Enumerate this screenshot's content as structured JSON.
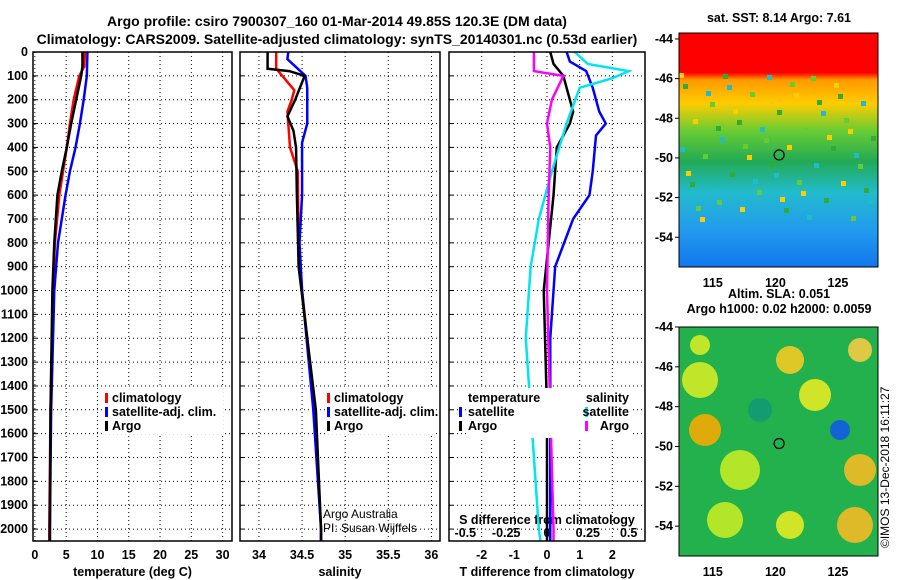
{
  "title": {
    "line1": "Argo profile: csiro 7900307_160 01-Mar-2014 49.85S 120.3E (DM data)",
    "line2": "Climatology: CARS2009. Satellite-adjusted climatology: synTS_20140301.nc (0.53d earlier)"
  },
  "credit": {
    "institution": "Argo Australia",
    "pi": "PI: Susan Wijffels"
  },
  "timestamp": "©IMOS 13-Dec-2018 16:11:27",
  "colors": {
    "climatology": "#ff0000",
    "satellite": "#0000ff",
    "argo": "#000000",
    "sal_satellite": "#00e5ee",
    "sal_argo": "#ff00ff"
  },
  "chart_data": [
    {
      "type": "line",
      "name": "temperature",
      "xlabel": "temperature (deg C)",
      "xlim": [
        -0.3,
        31.5
      ],
      "xticks": [
        0,
        5,
        10,
        15,
        20,
        25,
        30
      ],
      "ylim": [
        0,
        2050
      ],
      "yticks": [
        0,
        100,
        200,
        300,
        400,
        500,
        600,
        700,
        800,
        900,
        1000,
        1100,
        1200,
        1300,
        1400,
        1500,
        1600,
        1700,
        1800,
        1900,
        2000
      ],
      "grid": true,
      "legend": [
        "climatology",
        "satellite-adj. clim.",
        "Argo"
      ],
      "series": [
        {
          "name": "climatology",
          "color": "#ff0000",
          "depth": [
            0,
            60,
            100,
            200,
            300,
            400,
            500,
            600,
            800,
            1000,
            1500,
            2000,
            2050
          ],
          "values": [
            8,
            7.9,
            7.1,
            6.2,
            5.6,
            5.1,
            4.5,
            3.9,
            3.2,
            2.9,
            2.5,
            2.3,
            2.3
          ]
        },
        {
          "name": "satellite-adj. clim.",
          "color": "#0000ff",
          "depth": [
            0,
            100,
            200,
            300,
            400,
            500,
            600,
            800,
            1000,
            1500,
            2000,
            2050
          ],
          "values": [
            8.4,
            8.3,
            7.8,
            7.2,
            6.5,
            5.6,
            4.9,
            3.7,
            3.1,
            2.6,
            2.4,
            2.4
          ]
        },
        {
          "name": "Argo",
          "color": "#000000",
          "depth": [
            0,
            60,
            100,
            200,
            300,
            400,
            500,
            600,
            800,
            1000,
            1500,
            2000,
            2050
          ],
          "values": [
            7.6,
            7.6,
            7.4,
            6.6,
            5.8,
            5.1,
            4.3,
            3.6,
            3.1,
            2.8,
            2.5,
            2.4,
            2.4
          ]
        }
      ]
    },
    {
      "type": "line",
      "name": "salinity",
      "xlabel": "salinity",
      "xlim": [
        33.78,
        36.1
      ],
      "xticks": [
        34,
        34.5,
        35,
        35.5,
        36
      ],
      "ylim": [
        0,
        2050
      ],
      "grid": true,
      "legend": [
        "climatology",
        "satellite-adj. clim.",
        "Argo"
      ],
      "series": [
        {
          "name": "climatology",
          "color": "#ff0000",
          "depth": [
            0,
            70,
            160,
            200,
            250,
            400,
            500,
            800,
            1000,
            1500,
            2000,
            2050
          ],
          "values": [
            34.2,
            34.2,
            34.41,
            34.38,
            34.33,
            34.36,
            34.45,
            34.46,
            34.5,
            34.65,
            34.72,
            34.72
          ]
        },
        {
          "name": "satellite-adj. clim.",
          "color": "#0000ff",
          "depth": [
            0,
            30,
            70,
            100,
            150,
            300,
            380,
            600,
            800,
            1000,
            1500,
            2000,
            2050
          ],
          "values": [
            34.34,
            34.33,
            34.45,
            34.54,
            34.56,
            34.56,
            34.5,
            34.5,
            34.47,
            34.5,
            34.63,
            34.72,
            34.72
          ]
        },
        {
          "name": "Argo",
          "color": "#000000",
          "depth": [
            0,
            70,
            80,
            100,
            200,
            270,
            330,
            400,
            600,
            900,
            1200,
            1500,
            2000,
            2050
          ],
          "values": [
            34.1,
            34.1,
            34.35,
            34.53,
            34.42,
            34.33,
            34.4,
            34.43,
            34.44,
            34.46,
            34.56,
            34.66,
            34.72,
            34.72
          ]
        }
      ]
    },
    {
      "type": "line",
      "name": "difference",
      "xlabel": "T difference from climatology",
      "x2label": "S difference from climatology",
      "xlim": [
        -3,
        3
      ],
      "xticks": [
        -2,
        -1,
        0,
        1,
        2
      ],
      "x2lim": [
        -0.6,
        0.6
      ],
      "x2ticks": [
        -0.5,
        -0.25,
        0,
        0.25,
        0.5
      ],
      "x2ticklabels": [
        "-0.5",
        "-0.25",
        "0",
        "0.25",
        "0.5"
      ],
      "ylim": [
        0,
        2050
      ],
      "grid": true,
      "legend_temperature": {
        "title": "temperature",
        "entries": [
          "satellite",
          "Argo"
        ]
      },
      "legend_salinity": {
        "title": "salinity",
        "entries": [
          "satellite",
          "Argo"
        ]
      },
      "series": [
        {
          "name": "temperature satellite",
          "axis": "T",
          "color": "#0000ff",
          "depth": [
            0,
            40,
            80,
            150,
            250,
            300,
            350,
            500,
            600,
            700,
            900,
            1200,
            2000,
            2050
          ],
          "values": [
            0.6,
            0.7,
            1.2,
            1.4,
            1.6,
            1.8,
            1.5,
            1.4,
            1.3,
            0.8,
            0.25,
            0.1,
            0.1,
            0.1
          ]
        },
        {
          "name": "temperature Argo",
          "axis": "T",
          "color": "#000000",
          "depth": [
            0,
            50,
            100,
            150,
            250,
            300,
            400,
            600,
            800,
            1000,
            1500,
            2000,
            2050
          ],
          "values": [
            0.1,
            0.2,
            0.5,
            0.6,
            0.8,
            0.7,
            0.3,
            0.2,
            0.05,
            -0.1,
            0,
            0,
            0
          ]
        },
        {
          "name": "salinity satellite",
          "axis": "S",
          "color": "#00e5ee",
          "depth": [
            0,
            50,
            80,
            110,
            150,
            300,
            500,
            700,
            900,
            1200,
            1500,
            2000,
            2050
          ],
          "values": [
            0.17,
            0.25,
            0.5,
            0.4,
            0.2,
            0.12,
            0.03,
            -0.05,
            -0.1,
            -0.13,
            -0.1,
            -0.05,
            -0.04
          ]
        },
        {
          "name": "salinity Argo",
          "axis": "S",
          "color": "#ff00ff",
          "depth": [
            0,
            80,
            100,
            200,
            300,
            400,
            600,
            1000,
            2000,
            2050
          ],
          "values": [
            -0.08,
            -0.08,
            0.1,
            0.03,
            0,
            0.02,
            0.01,
            0,
            0.04,
            0.04
          ]
        }
      ]
    },
    {
      "type": "heatmap",
      "name": "sst-map",
      "title": "sat. SST: 8.14 Argo: 7.61",
      "xlim": [
        112.3,
        128.2
      ],
      "xticks": [
        115,
        120,
        125
      ],
      "ylim": [
        -55.5,
        -43.7
      ],
      "yticks": [
        -44,
        -46,
        -48,
        -50,
        -52,
        -54
      ],
      "marker": {
        "lon": 120.3,
        "lat": -49.85
      }
    },
    {
      "type": "heatmap",
      "name": "sla-map",
      "title": "Altim. SLA: 0.051",
      "subtitle": "Argo h1000: 0.02 h2000: 0.0059",
      "xlim": [
        112.3,
        128.2
      ],
      "xticks": [
        115,
        120,
        125
      ],
      "ylim": [
        -55.5,
        -44
      ],
      "yticks": [
        -44,
        -46,
        -48,
        -50,
        -52,
        -54
      ],
      "marker": {
        "lon": 120.3,
        "lat": -49.85
      }
    }
  ]
}
